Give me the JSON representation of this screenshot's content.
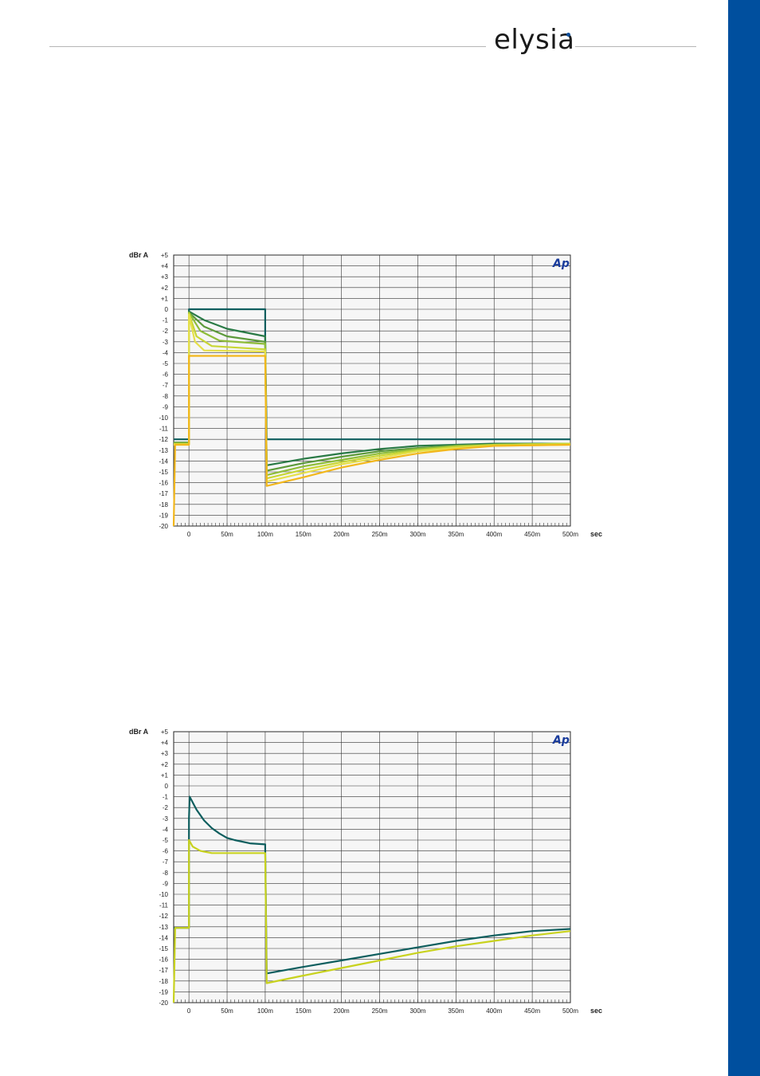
{
  "header": {
    "logo_text": "elysia",
    "logo_dot_color": "#0b4f9c"
  },
  "sidebar": {
    "color": "#004f9e"
  },
  "chart_data": [
    {
      "type": "line",
      "ylabel": "dBr A",
      "xlabel": "sec",
      "badge": "Ap",
      "x_range": [
        -0.02,
        0.5
      ],
      "ylim": [
        -20,
        5
      ],
      "y_ticks": [
        "+5",
        "+4",
        "+3",
        "+2",
        "+1",
        "0",
        "-1",
        "-2",
        "-3",
        "-4",
        "-5",
        "-6",
        "-7",
        "-8",
        "-9",
        "-10",
        "-11",
        "-12",
        "-13",
        "-14",
        "-15",
        "-16",
        "-17",
        "-18",
        "-19",
        "-20"
      ],
      "x_ticks": [
        "0",
        "50m",
        "100m",
        "150m",
        "200m",
        "250m",
        "300m",
        "350m",
        "400m",
        "450m",
        "500m"
      ],
      "grid": true,
      "series": [
        {
          "color": "#0e5e5e",
          "points": [
            [
              -0.02,
              -12.0
            ],
            [
              0,
              -12.0
            ],
            [
              0,
              0
            ],
            [
              0.1,
              0
            ],
            [
              0.1,
              -2.4
            ],
            [
              0.102,
              -12.0
            ],
            [
              0.5,
              -12.0
            ]
          ]
        },
        {
          "color": "#2a7a46",
          "points": [
            [
              -0.02,
              -12.3
            ],
            [
              0,
              -12.3
            ],
            [
              0,
              -0.2
            ],
            [
              0.02,
              -1.0
            ],
            [
              0.05,
              -1.8
            ],
            [
              0.1,
              -2.5
            ],
            [
              0.1,
              -3.0
            ],
            [
              0.102,
              -14.4
            ],
            [
              0.15,
              -13.8
            ],
            [
              0.2,
              -13.3
            ],
            [
              0.25,
              -12.9
            ],
            [
              0.3,
              -12.6
            ],
            [
              0.35,
              -12.5
            ],
            [
              0.4,
              -12.4
            ],
            [
              0.5,
              -12.4
            ]
          ]
        },
        {
          "color": "#5c9a3a",
          "points": [
            [
              -0.02,
              -12.3
            ],
            [
              0,
              -12.3
            ],
            [
              0,
              -0.3
            ],
            [
              0.02,
              -1.6
            ],
            [
              0.05,
              -2.5
            ],
            [
              0.1,
              -3.0
            ],
            [
              0.102,
              -14.9
            ],
            [
              0.15,
              -14.2
            ],
            [
              0.2,
              -13.6
            ],
            [
              0.25,
              -13.1
            ],
            [
              0.3,
              -12.8
            ],
            [
              0.35,
              -12.6
            ],
            [
              0.4,
              -12.5
            ],
            [
              0.5,
              -12.4
            ]
          ]
        },
        {
          "color": "#8fbd3a",
          "points": [
            [
              -0.02,
              -12.4
            ],
            [
              0,
              -12.4
            ],
            [
              0,
              -0.3
            ],
            [
              0.015,
              -2.0
            ],
            [
              0.04,
              -2.9
            ],
            [
              0.1,
              -3.2
            ],
            [
              0.102,
              -15.3
            ],
            [
              0.15,
              -14.5
            ],
            [
              0.2,
              -13.9
            ],
            [
              0.25,
              -13.3
            ],
            [
              0.3,
              -12.9
            ],
            [
              0.35,
              -12.6
            ],
            [
              0.4,
              -12.5
            ],
            [
              0.5,
              -12.4
            ]
          ]
        },
        {
          "color": "#c8d634",
          "points": [
            [
              -0.02,
              -12.4
            ],
            [
              0,
              -12.4
            ],
            [
              0,
              -0.4
            ],
            [
              0.01,
              -2.5
            ],
            [
              0.03,
              -3.4
            ],
            [
              0.1,
              -3.7
            ],
            [
              0.102,
              -15.6
            ],
            [
              0.15,
              -14.8
            ],
            [
              0.2,
              -14.1
            ],
            [
              0.25,
              -13.5
            ],
            [
              0.3,
              -13.0
            ],
            [
              0.35,
              -12.7
            ],
            [
              0.4,
              -12.5
            ],
            [
              0.5,
              -12.4
            ]
          ]
        },
        {
          "color": "#e6e04a",
          "points": [
            [
              -0.02,
              -12.5
            ],
            [
              0,
              -12.5
            ],
            [
              0,
              -0.5
            ],
            [
              0.008,
              -3.0
            ],
            [
              0.02,
              -3.8
            ],
            [
              0.1,
              -3.9
            ],
            [
              0.102,
              -15.9
            ],
            [
              0.15,
              -15.1
            ],
            [
              0.2,
              -14.3
            ],
            [
              0.25,
              -13.7
            ],
            [
              0.3,
              -13.1
            ],
            [
              0.35,
              -12.8
            ],
            [
              0.4,
              -12.6
            ],
            [
              0.5,
              -12.5
            ]
          ]
        },
        {
          "color": "#f2b71c",
          "points": [
            [
              -0.02,
              -20
            ],
            [
              -0.018,
              -12.5
            ],
            [
              0,
              -12.5
            ],
            [
              0,
              -4.3
            ],
            [
              0.1,
              -4.3
            ],
            [
              0.102,
              -16.3
            ],
            [
              0.15,
              -15.5
            ],
            [
              0.2,
              -14.6
            ],
            [
              0.25,
              -13.9
            ],
            [
              0.3,
              -13.3
            ],
            [
              0.35,
              -12.9
            ],
            [
              0.4,
              -12.6
            ],
            [
              0.5,
              -12.5
            ]
          ]
        }
      ]
    },
    {
      "type": "line",
      "ylabel": "dBr A",
      "xlabel": "sec",
      "badge": "Ap",
      "x_range": [
        -0.02,
        0.5
      ],
      "ylim": [
        -20,
        5
      ],
      "y_ticks": [
        "+5",
        "+4",
        "+3",
        "+2",
        "+1",
        "0",
        "-1",
        "-2",
        "-3",
        "-4",
        "-5",
        "-6",
        "-7",
        "-8",
        "-9",
        "-10",
        "-11",
        "-12",
        "-13",
        "-14",
        "-15",
        "-16",
        "-17",
        "-18",
        "-19",
        "-20"
      ],
      "x_ticks": [
        "0",
        "50m",
        "100m",
        "150m",
        "200m",
        "250m",
        "300m",
        "350m",
        "400m",
        "450m",
        "500m"
      ],
      "grid": true,
      "series": [
        {
          "color": "#0e5e5e",
          "points": [
            [
              -0.02,
              -13.1
            ],
            [
              0,
              -13.1
            ],
            [
              0,
              -3.0
            ],
            [
              0.001,
              -1.0
            ],
            [
              0.01,
              -2.2
            ],
            [
              0.02,
              -3.2
            ],
            [
              0.03,
              -3.9
            ],
            [
              0.04,
              -4.4
            ],
            [
              0.05,
              -4.8
            ],
            [
              0.06,
              -5.0
            ],
            [
              0.08,
              -5.3
            ],
            [
              0.1,
              -5.4
            ],
            [
              0.1,
              -5.6
            ],
            [
              0.102,
              -17.3
            ],
            [
              0.15,
              -16.7
            ],
            [
              0.2,
              -16.1
            ],
            [
              0.25,
              -15.5
            ],
            [
              0.3,
              -14.9
            ],
            [
              0.35,
              -14.3
            ],
            [
              0.4,
              -13.8
            ],
            [
              0.45,
              -13.4
            ],
            [
              0.5,
              -13.2
            ]
          ]
        },
        {
          "color": "#c8d21e",
          "points": [
            [
              -0.02,
              -20
            ],
            [
              -0.018,
              -13.1
            ],
            [
              0,
              -13.1
            ],
            [
              0,
              -5.0
            ],
            [
              0.005,
              -5.6
            ],
            [
              0.015,
              -6.0
            ],
            [
              0.03,
              -6.2
            ],
            [
              0.1,
              -6.2
            ],
            [
              0.102,
              -18.2
            ],
            [
              0.15,
              -17.5
            ],
            [
              0.2,
              -16.8
            ],
            [
              0.25,
              -16.1
            ],
            [
              0.3,
              -15.4
            ],
            [
              0.35,
              -14.8
            ],
            [
              0.4,
              -14.3
            ],
            [
              0.45,
              -13.8
            ],
            [
              0.5,
              -13.4
            ]
          ]
        }
      ]
    }
  ]
}
